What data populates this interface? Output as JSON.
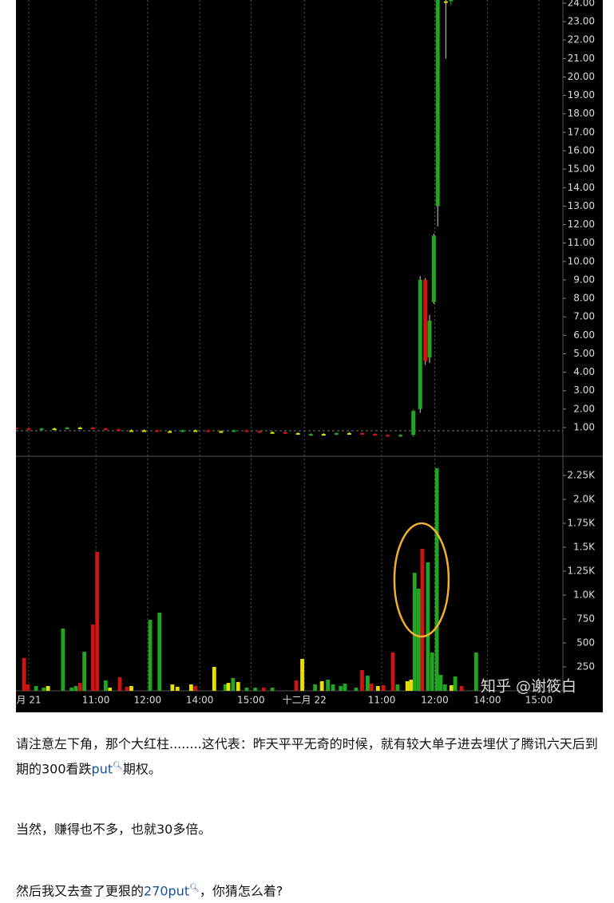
{
  "chart_data": [
    {
      "type": "candlestick",
      "x": [
        0,
        3,
        6,
        9,
        12,
        15,
        18,
        21,
        24,
        27,
        30,
        33,
        36,
        39,
        42,
        45,
        48,
        51,
        54,
        57,
        60,
        63,
        66,
        69,
        72,
        75,
        78,
        81,
        84,
        87,
        90,
        93,
        94.6,
        95.8,
        96.8,
        97.8,
        98.7,
        100.6,
        101.8
      ],
      "open": [
        1.0,
        0.95,
        0.9,
        0.95,
        0.95,
        1.0,
        1.0,
        0.95,
        0.9,
        0.85,
        0.85,
        0.85,
        0.8,
        0.8,
        0.85,
        0.85,
        0.8,
        0.8,
        0.85,
        0.8,
        0.75,
        0.75,
        0.7,
        0.6,
        0.65,
        0.65,
        0.7,
        0.7,
        0.65,
        0.6,
        0.55,
        0.6,
        2.0,
        9.0,
        4.8,
        7.8,
        13.0,
        24.1,
        24.1
      ],
      "high": [
        1.05,
        1.0,
        1.0,
        1.0,
        1.05,
        1.05,
        1.05,
        1.0,
        0.95,
        0.9,
        0.9,
        0.9,
        0.85,
        0.9,
        0.9,
        0.9,
        0.85,
        0.9,
        0.9,
        0.85,
        0.8,
        0.8,
        0.75,
        0.7,
        0.7,
        0.75,
        0.75,
        0.75,
        0.7,
        0.65,
        0.65,
        2.0,
        9.2,
        9.1,
        7.1,
        11.5,
        24.5,
        24.5,
        24.3
      ],
      "low": [
        0.9,
        0.85,
        0.85,
        0.9,
        0.9,
        0.95,
        0.9,
        0.85,
        0.8,
        0.8,
        0.8,
        0.75,
        0.75,
        0.75,
        0.8,
        0.75,
        0.75,
        0.75,
        0.75,
        0.7,
        0.7,
        0.65,
        0.65,
        0.55,
        0.6,
        0.6,
        0.65,
        0.6,
        0.55,
        0.5,
        0.5,
        0.5,
        1.8,
        4.4,
        4.5,
        7.7,
        11.9,
        21.0,
        23.9
      ],
      "close": [
        0.95,
        0.9,
        0.95,
        0.95,
        1.0,
        1.0,
        0.95,
        0.9,
        0.85,
        0.85,
        0.85,
        0.8,
        0.8,
        0.85,
        0.85,
        0.8,
        0.8,
        0.85,
        0.8,
        0.75,
        0.75,
        0.7,
        0.7,
        0.65,
        0.65,
        0.7,
        0.7,
        0.65,
        0.6,
        0.55,
        0.6,
        1.9,
        9.0,
        4.6,
        6.8,
        11.4,
        24.3,
        24.1,
        24.2
      ],
      "up_color": "#22a622",
      "down_color": "#d01414",
      "flat_color": "#e6e000",
      "xlim": [
        0,
        128
      ],
      "ylim": [
        -0.47,
        24.17
      ],
      "yticks": [
        {
          "value": 1,
          "label": "1.00"
        },
        {
          "value": 2,
          "label": "2.00"
        },
        {
          "value": 3,
          "label": "3.00"
        },
        {
          "value": 4,
          "label": "4.00"
        },
        {
          "value": 5,
          "label": "5.00"
        },
        {
          "value": 6,
          "label": "6.00"
        },
        {
          "value": 7,
          "label": "7.00"
        },
        {
          "value": 8,
          "label": "8.00"
        },
        {
          "value": 9,
          "label": "9.00"
        },
        {
          "value": 10,
          "label": "10.00"
        },
        {
          "value": 11,
          "label": "11.00"
        },
        {
          "value": 12,
          "label": "12.00"
        },
        {
          "value": 13,
          "label": "13.00"
        },
        {
          "value": 14,
          "label": "14.00"
        },
        {
          "value": 15,
          "label": "15.00"
        },
        {
          "value": 16,
          "label": "16.00"
        },
        {
          "value": 17,
          "label": "17.00"
        },
        {
          "value": 18,
          "label": "18.00"
        },
        {
          "value": 19,
          "label": "19.00"
        },
        {
          "value": 20,
          "label": "20.00"
        },
        {
          "value": 21,
          "label": "21.00"
        },
        {
          "value": 22,
          "label": "22.00"
        },
        {
          "value": 23,
          "label": "23.00"
        },
        {
          "value": 24,
          "label": "24.00"
        }
      ]
    },
    {
      "type": "bar",
      "x": [
        1.9,
        2.8,
        4.7,
        6.5,
        7.5,
        11,
        13,
        14,
        15,
        16,
        18,
        19,
        21,
        22,
        24.3,
        26,
        27,
        31.4,
        33.6,
        36.6,
        37.8,
        41,
        42,
        46.4,
        49,
        49.7,
        50.8,
        52,
        54,
        56,
        58,
        60,
        65.6,
        67,
        70,
        71.6,
        73,
        74.2,
        76,
        77,
        79.6,
        81,
        82.3,
        83.2,
        84.7,
        86,
        88.2,
        89.3,
        91.6,
        92.5,
        93.3,
        94.2,
        95.1,
        96.4,
        97.4,
        98.5,
        99.4,
        100.4,
        101.9,
        102.8,
        104.3,
        107.7
      ],
      "values": [
        342,
        67,
        50,
        33,
        50,
        650,
        33,
        50,
        83,
        408,
        692,
        1450,
        108,
        33,
        142,
        42,
        50,
        742,
        817,
        67,
        42,
        67,
        50,
        250,
        67,
        83,
        133,
        92,
        33,
        33,
        33,
        33,
        108,
        333,
        67,
        100,
        117,
        67,
        50,
        75,
        33,
        217,
        158,
        75,
        50,
        58,
        400,
        67,
        100,
        117,
        1233,
        1067,
        1483,
        1342,
        400,
        2325,
        167,
        67,
        58,
        150,
        50,
        400
      ],
      "colors": [
        "#d01414",
        "#d01414",
        "#22a622",
        "#22a622",
        "#e6e000",
        "#22a622",
        "#22a622",
        "#22a622",
        "#d01414",
        "#22a622",
        "#d01414",
        "#d01414",
        "#22a622",
        "#e6e000",
        "#d01414",
        "#d01414",
        "#e6e000",
        "#22a622",
        "#22a622",
        "#e6e000",
        "#e6e000",
        "#e6e000",
        "#d01414",
        "#e6e000",
        "#22a622",
        "#e6e000",
        "#22a622",
        "#e6e000",
        "#22a622",
        "#22a622",
        "#d01414",
        "#22a622",
        "#d01414",
        "#e6e000",
        "#22a622",
        "#e6e000",
        "#22a622",
        "#22a622",
        "#22a622",
        "#22a622",
        "#22a622",
        "#d01414",
        "#22a622",
        "#d01414",
        "#e6e000",
        "#d01414",
        "#d01414",
        "#22a622",
        "#e6e000",
        "#e6e000",
        "#22a622",
        "#22a622",
        "#d01414",
        "#22a622",
        "#22a622",
        "#22a622",
        "#22a622",
        "#22a622",
        "#e6e000",
        "#22a622",
        "#d01414",
        "#22a622"
      ],
      "xlim": [
        0,
        128
      ],
      "ylim": [
        0,
        2425
      ],
      "xticks": [
        {
          "value": 3,
          "label": "月 21"
        },
        {
          "value": 18.7,
          "label": "11:00"
        },
        {
          "value": 30.8,
          "label": "12:00"
        },
        {
          "value": 43,
          "label": "14:00"
        },
        {
          "value": 55,
          "label": "15:00"
        },
        {
          "value": 67.5,
          "label": "十二月 22"
        },
        {
          "value": 85.6,
          "label": "11:00"
        },
        {
          "value": 98,
          "label": "12:00"
        },
        {
          "value": 110.3,
          "label": "14:00"
        },
        {
          "value": 122.4,
          "label": "15:00"
        }
      ],
      "yticks": [
        250,
        500,
        750,
        {
          "value": 1000,
          "label": "1.0K"
        },
        {
          "value": 1250,
          "label": "1.25K"
        },
        {
          "value": 1500,
          "label": "1.5K"
        },
        {
          "value": 1750,
          "label": "1.75K"
        },
        {
          "value": 2000,
          "label": "2.0K"
        },
        {
          "value": 2250,
          "label": "2.25K"
        }
      ],
      "highlight_color": "#f0b030"
    }
  ],
  "watermark": "知乎 @谢筱白",
  "article": {
    "paragraphs": [
      {
        "text": "请注意左下角，那个大红柱........这代表：昨天平平无奇的时候，就有较大单子进去埋伏了腾讯六天后到期的300看跌",
        "link": "put",
        "after": "期权。"
      },
      {
        "text": "当然，赚得也不多，也就30多倍。"
      },
      {
        "text": "然后我又去查了更狠的",
        "link": "270put",
        "after": "，你猜怎么着?"
      }
    ]
  }
}
